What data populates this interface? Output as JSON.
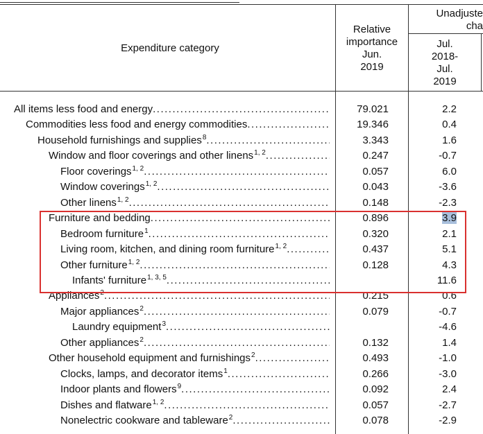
{
  "header": {
    "category": "Expenditure category",
    "importance": [
      "Relative",
      "importance",
      "Jun.",
      "2019"
    ],
    "change_group": [
      "Unadjuste",
      "cha"
    ],
    "change_period": [
      "Jul.",
      "2018-",
      "Jul.",
      "2019"
    ]
  },
  "table": {
    "rows": [
      {
        "name": "All items less food and energy",
        "sup": null,
        "importance": "79.021",
        "change": "2.2"
      },
      {
        "name": "Commodities less food and energy commodities",
        "sup": null,
        "importance": "19.346",
        "change": "0.4"
      },
      {
        "name": "Household furnishings and supplies",
        "sup": "8",
        "importance": "3.343",
        "change": "1.6"
      },
      {
        "name": "Window and floor coverings and other linens",
        "sup": "1, 2",
        "importance": "0.247",
        "change": "-0.7"
      },
      {
        "name": "Floor coverings",
        "sup": "1, 2",
        "importance": "0.057",
        "change": "6.0"
      },
      {
        "name": "Window coverings",
        "sup": "1, 2",
        "importance": "0.043",
        "change": "-3.6"
      },
      {
        "name": "Other linens",
        "sup": "1, 2",
        "importance": "0.148",
        "change": "-2.3"
      },
      {
        "name": "Furniture and bedding",
        "sup": null,
        "importance": "0.896",
        "change": "3.9"
      },
      {
        "name": "Bedroom furniture",
        "sup": "1",
        "importance": "0.320",
        "change": "2.1"
      },
      {
        "name": "Living room, kitchen, and dining room furniture",
        "sup": "1, 2",
        "importance": "0.437",
        "change": "5.1"
      },
      {
        "name": "Other furniture",
        "sup": "1, 2",
        "importance": "0.128",
        "change": "4.3"
      },
      {
        "name": "Infants' furniture",
        "sup": "1, 3, 5",
        "importance": null,
        "change": "11.6"
      },
      {
        "name": "Appliances",
        "sup": "2",
        "importance": "0.215",
        "change": "0.6"
      },
      {
        "name": "Major appliances",
        "sup": "2",
        "importance": "0.079",
        "change": "-0.7"
      },
      {
        "name": "Laundry equipment",
        "sup": "3",
        "importance": null,
        "change": "-4.6"
      },
      {
        "name": "Other appliances",
        "sup": "2",
        "importance": "0.132",
        "change": "1.4"
      },
      {
        "name": "Other household equipment and furnishings",
        "sup": "2",
        "importance": "0.493",
        "change": "-1.0"
      },
      {
        "name": "Clocks, lamps, and decorator items",
        "sup": "1",
        "importance": "0.266",
        "change": "-3.0"
      },
      {
        "name": "Indoor plants and flowers",
        "sup": "9",
        "importance": "0.092",
        "change": "2.4"
      },
      {
        "name": "Dishes and flatware",
        "sup": "1, 2",
        "importance": "0.057",
        "change": "-2.7"
      },
      {
        "name": "Nonelectric cookware and tableware",
        "sup": "2",
        "importance": "0.078",
        "change": "-2.9"
      }
    ]
  }
}
